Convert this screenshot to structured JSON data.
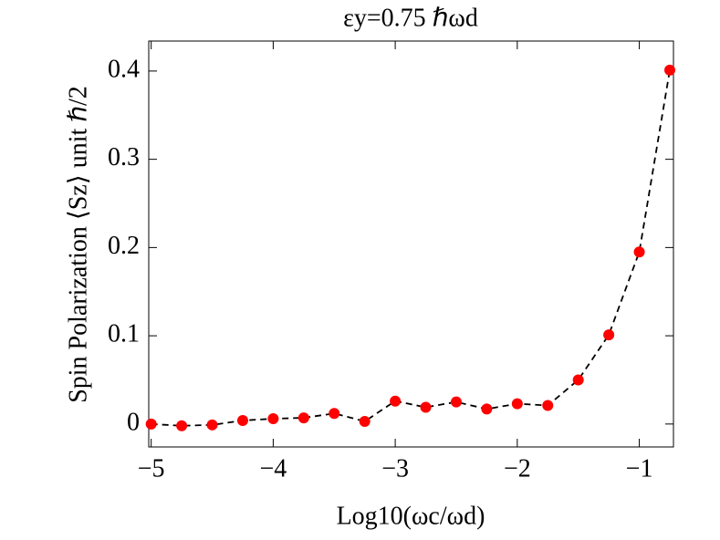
{
  "chart_data": {
    "type": "line",
    "title": "εy=0.75 ℏωd",
    "xlabel": "Log10(ωc/ωd)",
    "ylabel": "Spin Polarization ⟨Sz⟩ unit ℏ/2",
    "x": [
      -5,
      -4.75,
      -4.5,
      -4.25,
      -4,
      -3.75,
      -3.5,
      -3.25,
      -3,
      -2.75,
      -2.5,
      -2.25,
      -2,
      -1.75,
      -1.5,
      -1.25,
      -1,
      -0.75
    ],
    "series": [
      {
        "color": "#ff0000",
        "line_color": "#000000",
        "values": [
          0.0,
          -0.002,
          -0.001,
          0.004,
          0.006,
          0.007,
          0.012,
          0.003,
          0.026,
          0.019,
          0.025,
          0.017,
          0.023,
          0.021,
          0.05,
          0.101,
          0.195,
          0.401
        ]
      }
    ],
    "xlim": [
      -5.02,
      -0.72
    ],
    "ylim": [
      -0.026,
      0.434
    ],
    "xticks": [
      {
        "value": -5,
        "label": "−5"
      },
      {
        "value": -4,
        "label": "−4"
      },
      {
        "value": -3,
        "label": "−3"
      },
      {
        "value": -2,
        "label": "−2"
      },
      {
        "value": -1,
        "label": "−1"
      }
    ],
    "yticks": [
      0,
      0.1,
      0.2,
      0.3,
      0.4
    ]
  }
}
